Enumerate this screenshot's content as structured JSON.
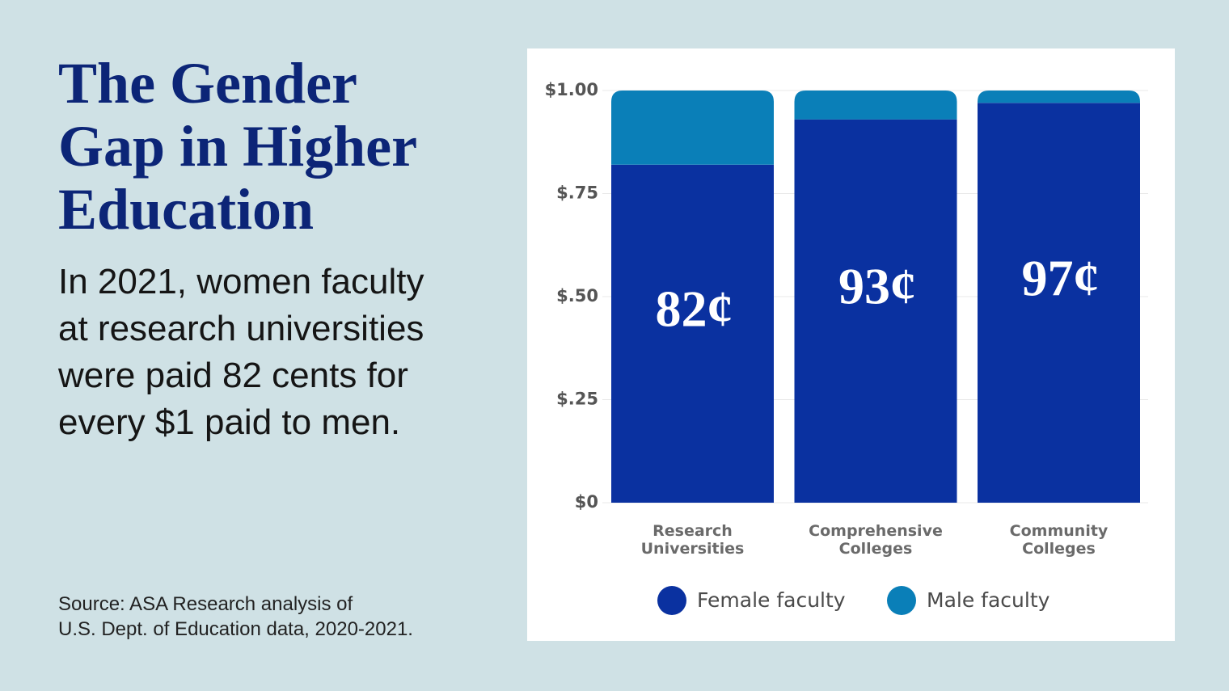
{
  "chart_data": {
    "type": "stacked_bar",
    "title": [
      "The Gender",
      "Gap in Higher",
      "Education"
    ],
    "subtitle": [
      "In 2021, women faculty",
      "at research universities",
      "were paid 82 cents for",
      "every $1 paid to men."
    ],
    "source": [
      "Source: ASA Research analysis of",
      "U.S. Dept. of Education data, 2020-2021."
    ],
    "categories": [
      "Research Universities",
      "Comprehensive Colleges",
      "Community Colleges"
    ],
    "series": [
      {
        "name": "Female faculty",
        "color": "#0a31a0",
        "values": [
          0.82,
          0.93,
          0.97
        ],
        "value_labels": [
          "82¢",
          "93¢",
          "97¢"
        ]
      },
      {
        "name": "Male faculty",
        "color": "#0a7fb8",
        "values": [
          0.18,
          0.07,
          0.03
        ]
      }
    ],
    "ylim": [
      0,
      1
    ],
    "yticks": [
      {
        "value": 0,
        "label": "$0"
      },
      {
        "value": 0.25,
        "label": "$.25"
      },
      {
        "value": 0.5,
        "label": "$.50"
      },
      {
        "value": 0.75,
        "label": "$.75"
      },
      {
        "value": 1,
        "label": "$1.00"
      }
    ],
    "grid": true,
    "legend": "bottom"
  }
}
